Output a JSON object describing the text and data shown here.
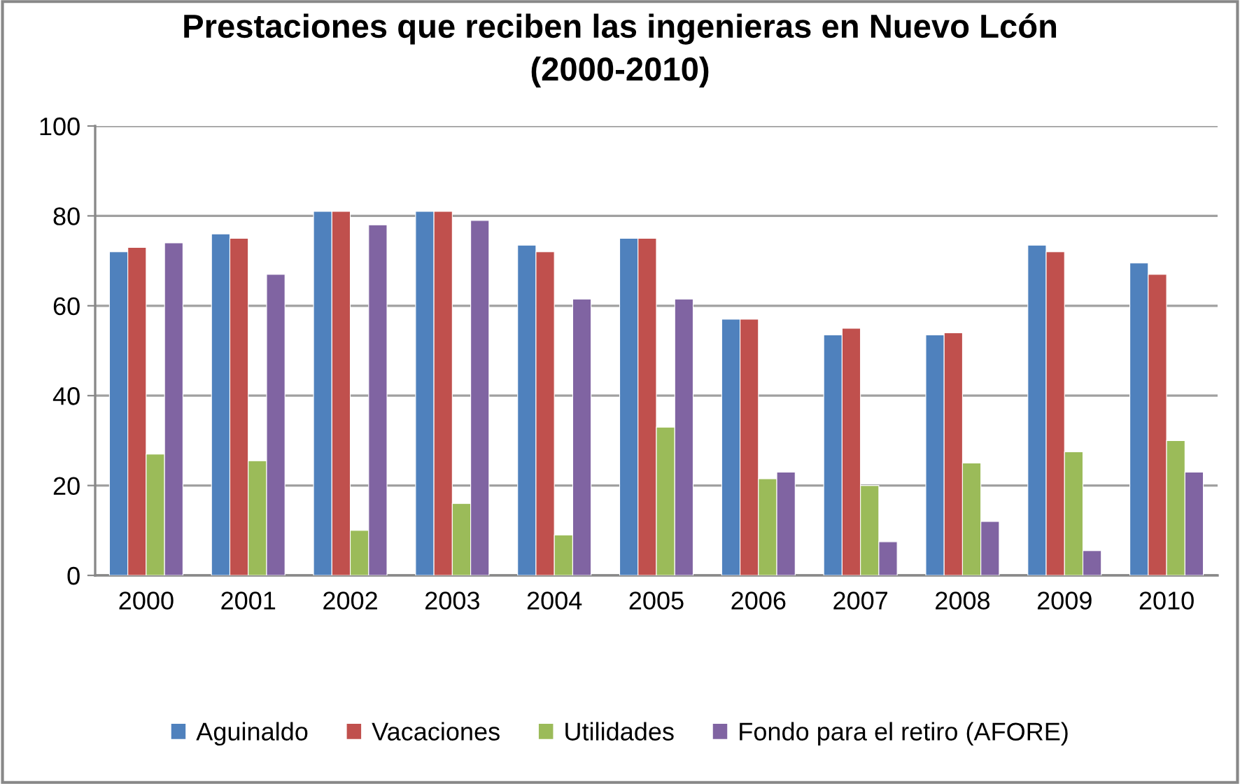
{
  "chart_data": {
    "type": "bar",
    "title": "Prestaciones que reciben las ingenieras en Nuevo Lcón\n(2000-2010)",
    "categories": [
      "2000",
      "2001",
      "2002",
      "2003",
      "2004",
      "2005",
      "2006",
      "2007",
      "2008",
      "2009",
      "2010"
    ],
    "series": [
      {
        "name": "Aguinaldo",
        "color": "#4f81bd",
        "values": [
          72,
          76,
          81,
          81,
          73.5,
          75,
          57,
          53.5,
          53.5,
          73.5,
          69.5
        ]
      },
      {
        "name": "Vacaciones",
        "color": "#c0504d",
        "values": [
          73,
          75,
          81,
          81,
          72,
          75,
          57,
          55,
          54,
          72,
          67
        ]
      },
      {
        "name": "Utilidades",
        "color": "#9bbb59",
        "values": [
          27,
          25.5,
          10,
          16,
          9,
          33,
          21.5,
          20,
          25,
          27.5,
          30
        ]
      },
      {
        "name": "Fondo para el retiro (AFORE)",
        "color": "#8064a2",
        "values": [
          74,
          67,
          78,
          79,
          61.5,
          61.5,
          23,
          7.5,
          12,
          5.5,
          23
        ]
      }
    ],
    "ylim": [
      0,
      100
    ],
    "yticks": [
      0,
      20,
      40,
      60,
      80,
      100
    ],
    "grid": "y",
    "legend": "bottom"
  }
}
